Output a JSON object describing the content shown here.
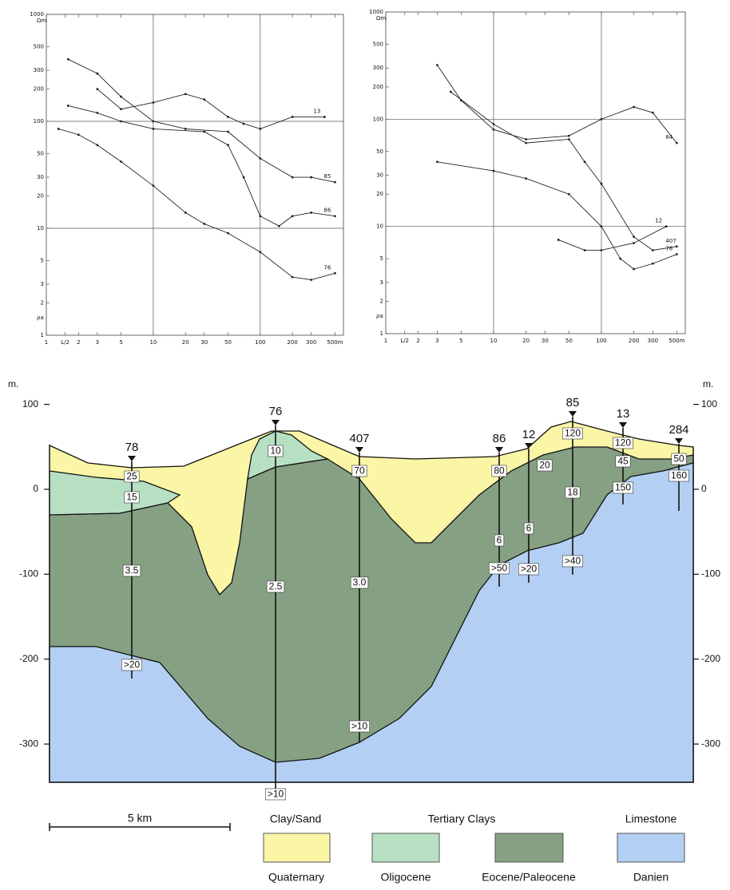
{
  "chart_data": [
    {
      "type": "line",
      "y_label": "ρa",
      "unit_label": "Ωm",
      "xscale": "log",
      "yscale": "log",
      "xlim": [
        1,
        600
      ],
      "ylim": [
        1,
        1000
      ],
      "xticks": [
        1,
        {
          "value": 1.5,
          "label": "L/2"
        },
        2,
        3,
        5,
        10,
        20,
        30,
        50,
        100,
        200,
        300,
        {
          "value": 500,
          "label": "500m"
        }
      ],
      "yticks": [
        1,
        2,
        3,
        5,
        10,
        20,
        30,
        50,
        100,
        200,
        300,
        500,
        1000
      ],
      "series": [
        {
          "name": "13",
          "color": "#222",
          "x": [
            3,
            5,
            10,
            20,
            30,
            50,
            70,
            100,
            200,
            400
          ],
          "values": [
            200,
            130,
            150,
            180,
            160,
            110,
            95,
            85,
            110,
            110
          ]
        },
        {
          "name": "85",
          "color": "#222",
          "x": [
            1.6,
            3,
            5,
            10,
            20,
            50,
            100,
            200,
            300,
            500
          ],
          "values": [
            380,
            280,
            170,
            100,
            85,
            80,
            45,
            30,
            30,
            27
          ]
        },
        {
          "name": "86",
          "color": "#222",
          "x": [
            1.6,
            3,
            5,
            10,
            30,
            50,
            70,
            100,
            150,
            200,
            300,
            500
          ],
          "values": [
            140,
            120,
            100,
            85,
            80,
            60,
            30,
            13,
            10.5,
            13,
            14,
            13
          ]
        },
        {
          "name": "76",
          "color": "#222",
          "x": [
            1.3,
            2,
            3,
            5,
            10,
            20,
            30,
            50,
            100,
            200,
            300,
            500
          ],
          "values": [
            85,
            75,
            60,
            42,
            25,
            14,
            11,
            9,
            6,
            3.5,
            3.3,
            3.8
          ]
        }
      ]
    },
    {
      "type": "line",
      "y_label": "ρa",
      "unit_label": "Ωm",
      "xscale": "log",
      "yscale": "log",
      "xlim": [
        1,
        600
      ],
      "ylim": [
        1,
        1000
      ],
      "xticks": [
        1,
        {
          "value": 1.5,
          "label": "L/2"
        },
        2,
        3,
        5,
        10,
        20,
        30,
        50,
        100,
        200,
        300,
        {
          "value": 500,
          "label": "500m"
        }
      ],
      "yticks": [
        1,
        2,
        3,
        5,
        10,
        20,
        30,
        50,
        100,
        200,
        300,
        500,
        1000
      ],
      "series": [
        {
          "name": "84",
          "color": "#222",
          "x": [
            3,
            5,
            10,
            20,
            50,
            100,
            200,
            300,
            500
          ],
          "values": [
            320,
            150,
            80,
            65,
            70,
            100,
            130,
            115,
            60
          ]
        },
        {
          "name": "12",
          "color": "#222",
          "x": [
            40,
            70,
            100,
            200,
            400
          ],
          "values": [
            7.5,
            6,
            6,
            7,
            10
          ]
        },
        {
          "name": "407",
          "color": "#222",
          "x": [
            4,
            10,
            20,
            50,
            70,
            100,
            200,
            300,
            500
          ],
          "values": [
            180,
            90,
            60,
            65,
            40,
            25,
            8,
            6,
            6.5
          ]
        },
        {
          "name": "78",
          "color": "#222",
          "x": [
            3,
            10,
            20,
            50,
            100,
            150,
            200,
            300,
            500
          ],
          "values": [
            40,
            33,
            28,
            20,
            10,
            5,
            4,
            4.5,
            5.5
          ]
        }
      ]
    }
  ],
  "section": {
    "y_label": "m.",
    "ylim": [
      -345,
      125
    ],
    "yticks": [
      100,
      0,
      -100,
      -200,
      -300
    ],
    "boreholes": [
      {
        "name": "78",
        "resistivities": [
          "25",
          "15",
          "3.5",
          ">20"
        ]
      },
      {
        "name": "76",
        "resistivities": [
          "10",
          "2.5",
          ">10"
        ]
      },
      {
        "name": "407",
        "resistivities": [
          "70",
          "3.0",
          ">10"
        ]
      },
      {
        "name": "86",
        "resistivities": [
          "80",
          "6",
          ">50"
        ]
      },
      {
        "name": "12",
        "resistivities": [
          "20",
          "6",
          ">20"
        ]
      },
      {
        "name": "85",
        "resistivities": [
          "120",
          "18",
          ">40"
        ]
      },
      {
        "name": "13",
        "resistivities": [
          "120",
          "45",
          "150"
        ]
      },
      {
        "name": "284",
        "resistivities": [
          "50",
          "160"
        ]
      }
    ]
  },
  "legend": {
    "scale": "5 km",
    "groups": [
      "Clay/Sand",
      "Tertiary Clays",
      "Limestone"
    ],
    "units": [
      "Quaternary",
      "Oligocene",
      "Eocene/Paleocene",
      "Danien"
    ]
  }
}
